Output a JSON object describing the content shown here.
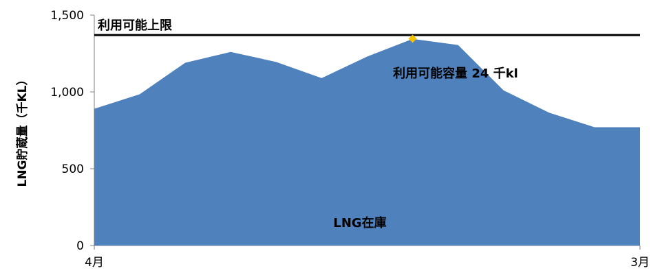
{
  "chart_data": {
    "type": "area",
    "title": "",
    "ylabel": "LNG貯蔵量（千KL）",
    "xlabel": "",
    "ylim": [
      0,
      1500
    ],
    "yticks": [
      0,
      500,
      1000,
      1500
    ],
    "ytick_labels": [
      "0",
      "500",
      "1,000",
      "1,500"
    ],
    "xticks": [
      "4月",
      "3月"
    ],
    "x": [
      0,
      1,
      2,
      3,
      4,
      5,
      6,
      7,
      8,
      9,
      10,
      11,
      12
    ],
    "series": [
      {
        "name": "LNG在庫",
        "values": [
          890,
          985,
          1190,
          1260,
          1195,
          1090,
          1230,
          1345,
          1305,
          1010,
          865,
          770,
          770
        ],
        "color": "#4f81bd"
      }
    ],
    "reference_line": {
      "label": "利用可能上限",
      "value": 1370,
      "color": "#000000"
    },
    "marker": {
      "x": 7,
      "value": 1346,
      "color": "#f5c000"
    },
    "annotations": {
      "available_capacity": "利用可能容量 24 千kl",
      "area_label": "LNG在庫"
    }
  }
}
